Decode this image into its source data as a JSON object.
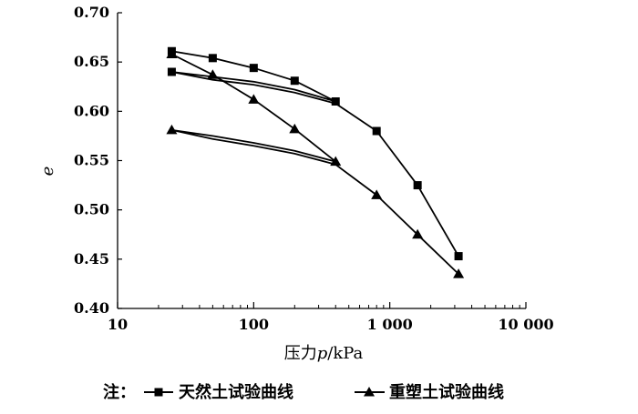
{
  "chart_data": {
    "type": "line",
    "xscale": "log",
    "xlim": [
      10,
      10000
    ],
    "ylim": [
      0.4,
      0.7
    ],
    "xticks": [
      10,
      100,
      1000,
      10000
    ],
    "xtick_labels": [
      "10",
      "100",
      "1 000",
      "10 000"
    ],
    "yticks": [
      0.4,
      0.45,
      0.5,
      0.55,
      0.6,
      0.65,
      0.7
    ],
    "ytick_labels": [
      "0.40",
      "0.45",
      "0.50",
      "0.55",
      "0.60",
      "0.65",
      "0.70"
    ],
    "xlabel_prefix": "压力",
    "xlabel_var": "p",
    "xlabel_suffix": "/kPa",
    "ylabel": "e",
    "grid": false,
    "legend_position": "bottom",
    "legend_prefix": "注：",
    "series": [
      {
        "name": "天然土试验曲线",
        "marker": "square",
        "points": [
          [
            25,
            0.661
          ],
          [
            50,
            0.654
          ],
          [
            100,
            0.644
          ],
          [
            200,
            0.631
          ],
          [
            400,
            0.61
          ],
          [
            200,
            0.622
          ],
          [
            100,
            0.63
          ],
          [
            50,
            0.635
          ],
          [
            25,
            0.64
          ],
          [
            50,
            0.632
          ],
          [
            100,
            0.627
          ],
          [
            200,
            0.619
          ],
          [
            400,
            0.608
          ],
          [
            800,
            0.58
          ],
          [
            1600,
            0.525
          ],
          [
            3200,
            0.453
          ]
        ],
        "markers": [
          [
            25,
            0.661
          ],
          [
            50,
            0.654
          ],
          [
            100,
            0.644
          ],
          [
            200,
            0.631
          ],
          [
            400,
            0.61
          ],
          [
            25,
            0.64
          ],
          [
            800,
            0.58
          ],
          [
            1600,
            0.525
          ],
          [
            3200,
            0.453
          ]
        ]
      },
      {
        "name": "重塑土试验曲线",
        "marker": "triangle",
        "points": [
          [
            25,
            0.658
          ],
          [
            50,
            0.637
          ],
          [
            100,
            0.612
          ],
          [
            200,
            0.582
          ],
          [
            400,
            0.549
          ],
          [
            200,
            0.56
          ],
          [
            100,
            0.568
          ],
          [
            50,
            0.575
          ],
          [
            25,
            0.581
          ],
          [
            50,
            0.572
          ],
          [
            100,
            0.565
          ],
          [
            200,
            0.557
          ],
          [
            400,
            0.546
          ],
          [
            800,
            0.515
          ],
          [
            1600,
            0.475
          ],
          [
            3200,
            0.435
          ]
        ],
        "markers": [
          [
            25,
            0.658
          ],
          [
            50,
            0.637
          ],
          [
            100,
            0.612
          ],
          [
            200,
            0.582
          ],
          [
            400,
            0.549
          ],
          [
            25,
            0.581
          ],
          [
            800,
            0.515
          ],
          [
            1600,
            0.475
          ],
          [
            3200,
            0.435
          ]
        ]
      }
    ]
  }
}
